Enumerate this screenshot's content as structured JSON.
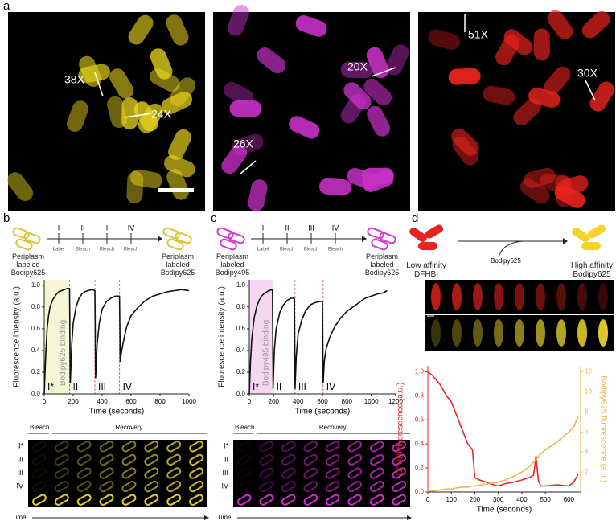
{
  "panel_letters": [
    "a",
    "b",
    "c",
    "d"
  ],
  "panel_a": {
    "fold_labels": [
      "38X",
      "24X",
      "20X",
      "26X",
      "51X",
      "30X"
    ]
  },
  "panel_b": {
    "schematic": {
      "start": "Periplasm labeled Bodipy625",
      "end": "Periplasm labeled Bodipy625",
      "steps": [
        "I",
        "II",
        "III",
        "IV"
      ],
      "actions": [
        "Label",
        "Bleach",
        "Bleach",
        "Bleach"
      ]
    },
    "montage": {
      "bleach": "Bleach",
      "recovery": "Recovery",
      "rows": [
        "I*",
        "II",
        "III",
        "IV"
      ],
      "time": "Time"
    }
  },
  "panel_c": {
    "schematic": {
      "start": "Periplasm labeled Bodipy495",
      "end": "Periplasm labeled Bodipy625",
      "steps": [
        "I",
        "II",
        "III",
        "IV"
      ],
      "actions": [
        "Label",
        "Bleach",
        "Bleach",
        "Bleach"
      ]
    },
    "montage": {
      "bleach": "Bleach",
      "recovery": "Recovery",
      "rows": [
        "I*",
        "II",
        "III",
        "IV"
      ],
      "time": "Time"
    }
  },
  "panel_d": {
    "schematic": {
      "start": "Low affinity DFHBI",
      "reagent": "Bodipy625",
      "end": "High affinity Bodipy625"
    }
  },
  "chart_data": [
    {
      "type": "line",
      "y_label": "Fluorescence intensity (a.u.)",
      "x_label": "Time (seconds)",
      "x": [
        0,
        10,
        20,
        30,
        40,
        60,
        80,
        100,
        120,
        140,
        160,
        175,
        180,
        190,
        200,
        220,
        240,
        260,
        280,
        300,
        330,
        350,
        355,
        365,
        380,
        400,
        430,
        460,
        490,
        520,
        525,
        535,
        550,
        570,
        600,
        650,
        700,
        750,
        800,
        850,
        900,
        950,
        1000
      ],
      "series": [
        {
          "color": "#111111",
          "values": [
            0,
            0.35,
            0.6,
            0.72,
            0.8,
            0.87,
            0.91,
            0.94,
            0.95,
            0.96,
            0.97,
            0.97,
            0.1,
            0.45,
            0.65,
            0.8,
            0.88,
            0.92,
            0.94,
            0.95,
            0.96,
            0.95,
            0.15,
            0.45,
            0.65,
            0.78,
            0.85,
            0.88,
            0.9,
            0.9,
            0.3,
            0.4,
            0.5,
            0.62,
            0.72,
            0.8,
            0.86,
            0.9,
            0.92,
            0.94,
            0.95,
            0.96,
            0.95
          ]
        }
      ],
      "xlim": [
        0,
        1000
      ],
      "xticks": [
        0,
        200,
        400,
        600,
        800,
        1000
      ],
      "ylim": [
        0,
        1.05
      ],
      "yticks": [
        {
          "value": 0,
          "label": "0.0"
        },
        0.2,
        0.4,
        0.6,
        0.8,
        {
          "value": 1,
          "label": "1.0"
        }
      ],
      "binding_label": "Bodipy625 binding",
      "binding_window": [
        0,
        175
      ],
      "binding_color": "#f6f5d6",
      "bleach_times": [
        175,
        350,
        520
      ],
      "bleach_color": "#e36a6a",
      "phases": [
        "I*",
        "II",
        "III",
        "IV"
      ]
    },
    {
      "type": "line",
      "y_label": "Fluorescence intensity (a.u.)",
      "x_label": "Time (seconds)",
      "x": [
        0,
        10,
        20,
        40,
        60,
        80,
        100,
        130,
        160,
        190,
        195,
        205,
        220,
        250,
        280,
        310,
        340,
        370,
        375,
        385,
        400,
        430,
        460,
        500,
        540,
        580,
        600,
        605,
        615,
        630,
        660,
        700,
        750,
        800,
        850,
        900,
        950,
        1000,
        1050,
        1100,
        1130
      ],
      "series": [
        {
          "color": "#111111",
          "values": [
            0,
            0.3,
            0.5,
            0.7,
            0.8,
            0.86,
            0.9,
            0.93,
            0.95,
            0.96,
            0.05,
            0.4,
            0.6,
            0.75,
            0.82,
            0.86,
            0.88,
            0.88,
            0.05,
            0.35,
            0.55,
            0.68,
            0.76,
            0.82,
            0.84,
            0.85,
            0.85,
            0.1,
            0.3,
            0.42,
            0.52,
            0.62,
            0.7,
            0.76,
            0.8,
            0.84,
            0.88,
            0.9,
            0.92,
            0.93,
            0.95
          ]
        }
      ],
      "xlim": [
        0,
        1200
      ],
      "xticks": [
        0,
        200,
        400,
        600,
        800,
        1000,
        1200
      ],
      "ylim": [
        0,
        1.05
      ],
      "yticks": [
        {
          "value": 0,
          "label": "0.0"
        },
        0.2,
        0.4,
        0.6,
        0.8,
        {
          "value": 1,
          "label": "1.0"
        }
      ],
      "binding_label": "Bodipy495 binding",
      "binding_window": [
        0,
        190
      ],
      "binding_color": "#f6d6f3",
      "bleach_times": [
        195,
        375,
        605
      ],
      "bleach_color": "#e36a6a",
      "phases": [
        "I*",
        "II",
        "III",
        "IV"
      ]
    },
    {
      "type": "line",
      "y_label": "DFHBI fluorescence (a.u.)",
      "y2_label": "Bodipy625 fluorescence (a.u.)",
      "x_label": "Time (seconds)",
      "x": [
        0,
        20,
        50,
        80,
        100,
        120,
        150,
        170,
        190,
        200,
        220,
        250,
        280,
        300,
        330,
        360,
        400,
        430,
        450,
        460,
        470,
        480,
        500,
        550,
        600,
        620,
        640
      ],
      "series": [
        {
          "color": "#e8262a",
          "values": [
            1.0,
            0.97,
            0.9,
            0.8,
            0.75,
            0.65,
            0.5,
            0.4,
            0.35,
            0.12,
            0.1,
            0.08,
            0.06,
            0.05,
            0.07,
            0.08,
            0.1,
            0.12,
            0.14,
            0.3,
            0.1,
            0.05,
            0.05,
            0.06,
            0.05,
            0.08,
            0.15
          ]
        },
        {
          "color": "#f2b24e",
          "axis": "y2",
          "values": [
            0.1,
            0.1,
            0.2,
            0.3,
            0.3,
            0.4,
            0.5,
            0.5,
            0.6,
            0.6,
            0.7,
            0.8,
            0.9,
            1.0,
            1.2,
            1.5,
            2.0,
            2.5,
            3.0,
            3.2,
            3.5,
            3.8,
            4.2,
            5.0,
            6.0,
            6.5,
            7.5
          ]
        }
      ],
      "xlim": [
        0,
        650
      ],
      "xticks": [
        0,
        100,
        200,
        300,
        400,
        500,
        600
      ],
      "ylim": [
        0,
        1.05
      ],
      "yticks": [
        {
          "value": 0,
          "label": "0.0"
        },
        0.2,
        0.4,
        0.6,
        0.8,
        {
          "value": 1,
          "label": "1.0"
        }
      ],
      "y2lim": [
        0,
        12.6
      ],
      "y2ticks": [
        2,
        4,
        6,
        8,
        10,
        12
      ]
    }
  ]
}
